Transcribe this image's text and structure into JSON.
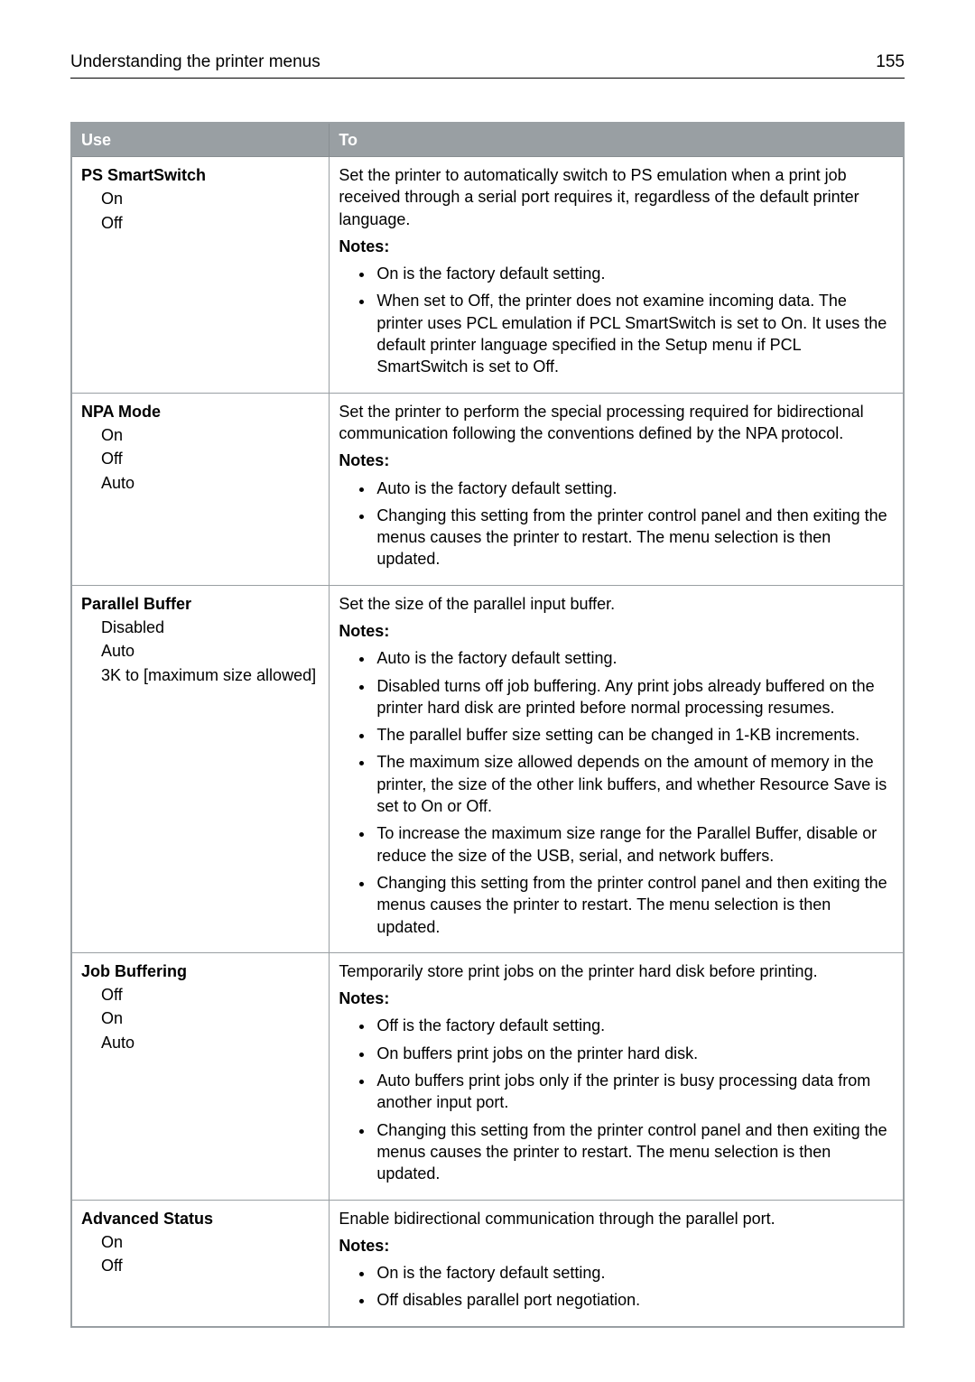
{
  "header": {
    "title": "Understanding the printer menus",
    "page_number": "155"
  },
  "table": {
    "columns": {
      "use": "Use",
      "to": "To"
    },
    "rows": [
      {
        "use_title": "PS SmartSwitch",
        "options": [
          "On",
          "Off"
        ],
        "description": "Set the printer to automatically switch to PS emulation when a print job received through a serial port requires it, regardless of the default printer language.",
        "notes_label": "Notes:",
        "notes": [
          "On is the factory default setting.",
          "When set to Off, the printer does not examine incoming data. The printer uses PCL emulation if PCL SmartSwitch is set to On. It uses the default printer language specified in the Setup menu if PCL SmartSwitch is set to Off."
        ]
      },
      {
        "use_title": "NPA Mode",
        "options": [
          "On",
          "Off",
          "Auto"
        ],
        "description": "Set the printer to perform the special processing required for bidirectional communication following the conventions defined by the NPA protocol.",
        "notes_label": "Notes:",
        "notes": [
          "Auto is the factory default setting.",
          "Changing this setting from the printer control panel and then exiting the menus causes the printer to restart. The menu selection is then updated."
        ]
      },
      {
        "use_title": "Parallel Buffer",
        "options": [
          "Disabled",
          "Auto",
          "3K to [maximum size allowed]"
        ],
        "description": "Set the size of the parallel input buffer.",
        "notes_label": "Notes:",
        "notes": [
          "Auto is the factory default setting.",
          "Disabled turns off job buffering. Any print jobs already buffered on the printer hard disk are printed before normal processing resumes.",
          "The parallel buffer size setting can be changed in 1-KB increments.",
          "The maximum size allowed depends on the amount of memory in the printer, the size of the other link buffers, and whether Resource Save is set to On or Off.",
          "To increase the maximum size range for the Parallel Buffer, disable or reduce the size of the USB, serial, and network buffers.",
          "Changing this setting from the printer control panel and then exiting the menus causes the printer to restart. The menu selection is then updated."
        ]
      },
      {
        "use_title": "Job Buffering",
        "options": [
          "Off",
          "On",
          "Auto"
        ],
        "description": "Temporarily store print jobs on the printer hard disk before printing.",
        "notes_label": "Notes:",
        "notes": [
          "Off is the factory default setting.",
          "On buffers print jobs on the printer hard disk.",
          "Auto buffers print jobs only if the printer is busy processing data from another input port.",
          "Changing this setting from the printer control panel and then exiting the menus causes the printer to restart. The menu selection is then updated."
        ]
      },
      {
        "use_title": "Advanced Status",
        "options": [
          "On",
          "Off"
        ],
        "description": "Enable bidirectional communication through the parallel port.",
        "notes_label": "Notes:",
        "notes": [
          "On is the factory default setting.",
          "Off disables parallel port negotiation."
        ]
      }
    ]
  }
}
